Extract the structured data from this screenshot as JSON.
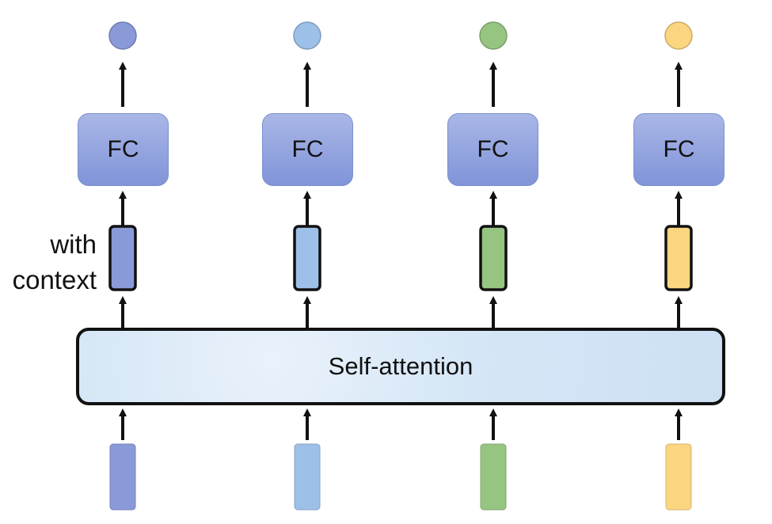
{
  "diagram": {
    "self_attention_label": "Self-attention",
    "context_label_line1": "with",
    "context_label_line2": "context",
    "columns": [
      {
        "fc_label": "FC",
        "color": "#8a9ad8"
      },
      {
        "fc_label": "FC",
        "color": "#9dc0e8"
      },
      {
        "fc_label": "FC",
        "color": "#96c481"
      },
      {
        "fc_label": "FC",
        "color": "#fbd57f"
      }
    ]
  }
}
